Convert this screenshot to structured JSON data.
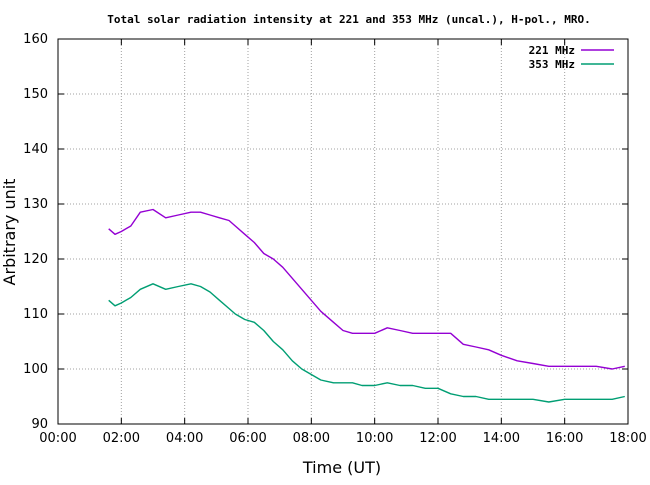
{
  "chart_data": {
    "type": "line",
    "title": "Total solar radiation intensity at 221 and 353 MHz (uncal.), H-pol., MRO.",
    "xlabel": "Time (UT)",
    "ylabel": "Arbitrary unit",
    "xlim": [
      0,
      18
    ],
    "ylim": [
      90,
      160
    ],
    "xticks": [
      "00:00",
      "02:00",
      "04:00",
      "06:00",
      "08:00",
      "10:00",
      "12:00",
      "14:00",
      "16:00",
      "18:00"
    ],
    "yticks": [
      "90",
      "100",
      "110",
      "120",
      "130",
      "140",
      "150",
      "160"
    ],
    "grid": true,
    "legend_position": "top-right",
    "series": [
      {
        "name": "221 MHz",
        "color": "#9400d3",
        "x": [
          1.6,
          1.8,
          2.0,
          2.3,
          2.6,
          3.0,
          3.4,
          3.8,
          4.2,
          4.5,
          4.8,
          5.1,
          5.4,
          5.6,
          5.9,
          6.2,
          6.5,
          6.8,
          7.1,
          7.4,
          7.7,
          8.0,
          8.3,
          8.7,
          9.0,
          9.3,
          9.6,
          10.0,
          10.4,
          10.8,
          11.2,
          11.6,
          12.0,
          12.4,
          12.8,
          13.2,
          13.6,
          14.0,
          14.5,
          15.0,
          15.5,
          16.0,
          16.5,
          17.0,
          17.5,
          17.9
        ],
        "values": [
          125.5,
          124.5,
          125.0,
          126.0,
          128.5,
          129.0,
          127.5,
          128.0,
          128.5,
          128.5,
          128.0,
          127.5,
          127.0,
          126.0,
          124.5,
          123.0,
          121.0,
          120.0,
          118.5,
          116.5,
          114.5,
          112.5,
          110.5,
          108.5,
          107.0,
          106.5,
          106.5,
          106.5,
          107.5,
          107.0,
          106.5,
          106.5,
          106.5,
          106.5,
          104.5,
          104.0,
          103.5,
          102.5,
          101.5,
          101.0,
          100.5,
          100.5,
          100.5,
          100.5,
          100.0,
          100.5
        ]
      },
      {
        "name": "353 MHz",
        "color": "#009e73",
        "x": [
          1.6,
          1.8,
          2.0,
          2.3,
          2.6,
          3.0,
          3.4,
          3.8,
          4.2,
          4.5,
          4.8,
          5.1,
          5.4,
          5.6,
          5.9,
          6.2,
          6.5,
          6.8,
          7.1,
          7.4,
          7.7,
          8.0,
          8.3,
          8.7,
          9.0,
          9.3,
          9.6,
          10.0,
          10.4,
          10.8,
          11.2,
          11.6,
          12.0,
          12.4,
          12.8,
          13.2,
          13.6,
          14.0,
          14.5,
          15.0,
          15.5,
          16.0,
          16.5,
          17.0,
          17.5,
          17.9
        ],
        "values": [
          112.5,
          111.5,
          112.0,
          113.0,
          114.5,
          115.5,
          114.5,
          115.0,
          115.5,
          115.0,
          114.0,
          112.5,
          111.0,
          110.0,
          109.0,
          108.5,
          107.0,
          105.0,
          103.5,
          101.5,
          100.0,
          99.0,
          98.0,
          97.5,
          97.5,
          97.5,
          97.0,
          97.0,
          97.5,
          97.0,
          97.0,
          96.5,
          96.5,
          95.5,
          95.0,
          95.0,
          94.5,
          94.5,
          94.5,
          94.5,
          94.0,
          94.5,
          94.5,
          94.5,
          94.5,
          95.0
        ]
      }
    ]
  }
}
